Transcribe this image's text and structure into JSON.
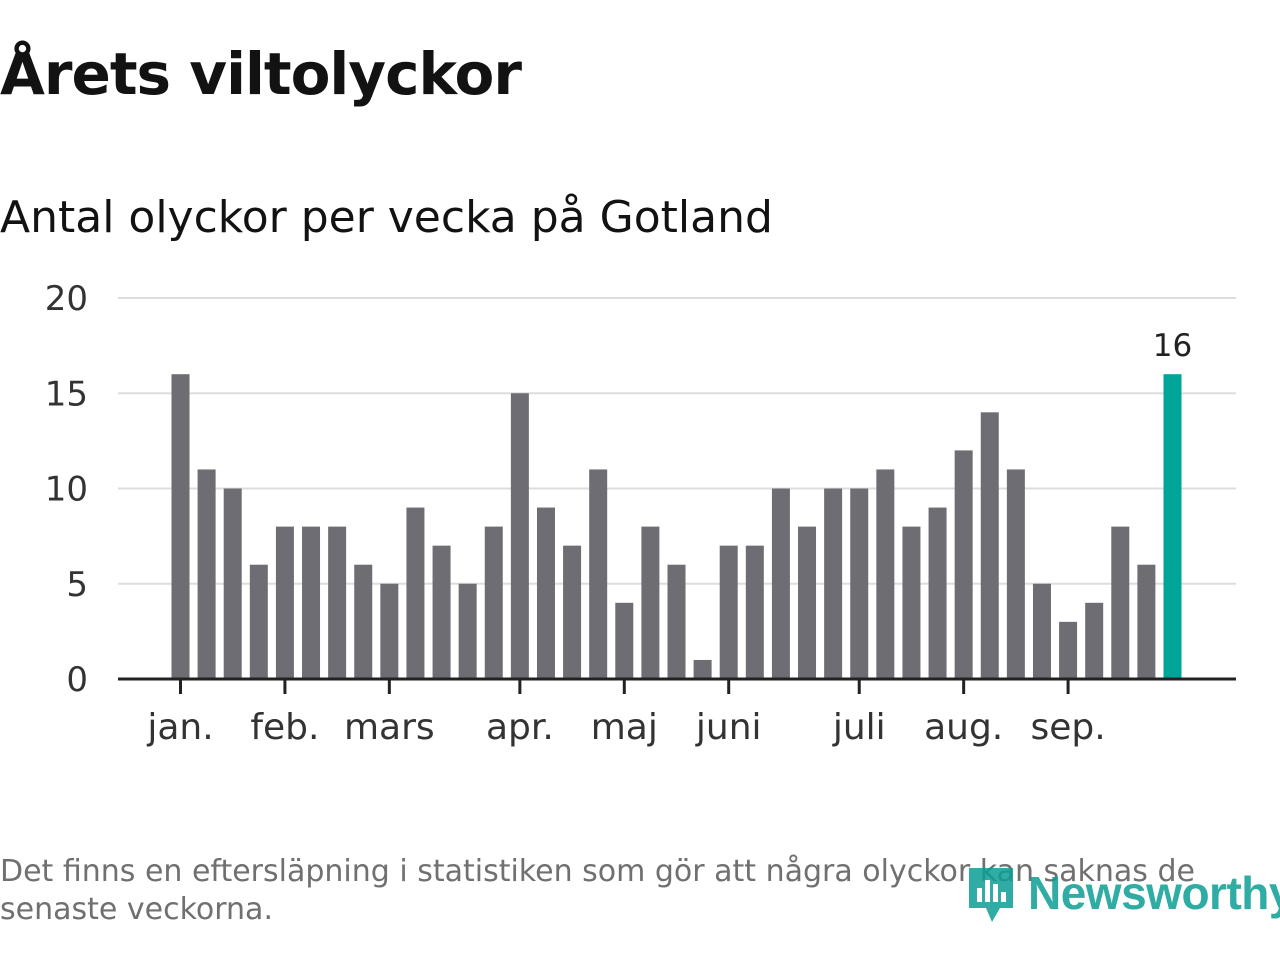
{
  "title": "Årets viltolyckor",
  "subtitle": "Antal olyckor per vecka på Gotland",
  "footnote": "Det finns en eftersläpning i statistiken som gör att några olyckor kan saknas de senaste veckorna.",
  "brand": {
    "name": "Newsworthy",
    "icon": "newsworthy-logo-icon",
    "color": "#0b9e93"
  },
  "colors": {
    "bar": "#6e6d73",
    "highlight": "#00a599",
    "grid": "#dddddd",
    "axis": "#222222"
  },
  "chart_data": {
    "type": "bar",
    "title": "Antal olyckor per vecka på Gotland",
    "xlabel": "",
    "ylabel": "",
    "ylim": [
      0,
      20
    ],
    "yticks": [
      0,
      5,
      10,
      15,
      20
    ],
    "grid": true,
    "values": [
      16,
      11,
      10,
      6,
      8,
      8,
      8,
      6,
      5,
      9,
      7,
      5,
      8,
      15,
      9,
      7,
      11,
      4,
      8,
      6,
      1,
      7,
      7,
      10,
      8,
      10,
      10,
      11,
      8,
      9,
      12,
      14,
      11,
      5,
      3,
      4,
      8,
      6,
      16
    ],
    "month_labels": [
      {
        "label": "jan.",
        "week_index": 0
      },
      {
        "label": "feb.",
        "week_index": 4
      },
      {
        "label": "mars",
        "week_index": 8
      },
      {
        "label": "apr.",
        "week_index": 13
      },
      {
        "label": "maj",
        "week_index": 17
      },
      {
        "label": "juni",
        "week_index": 21
      },
      {
        "label": "juli",
        "week_index": 26
      },
      {
        "label": "aug.",
        "week_index": 30
      },
      {
        "label": "sep.",
        "week_index": 34
      }
    ],
    "highlight_index": 38,
    "highlight_label": "16"
  }
}
